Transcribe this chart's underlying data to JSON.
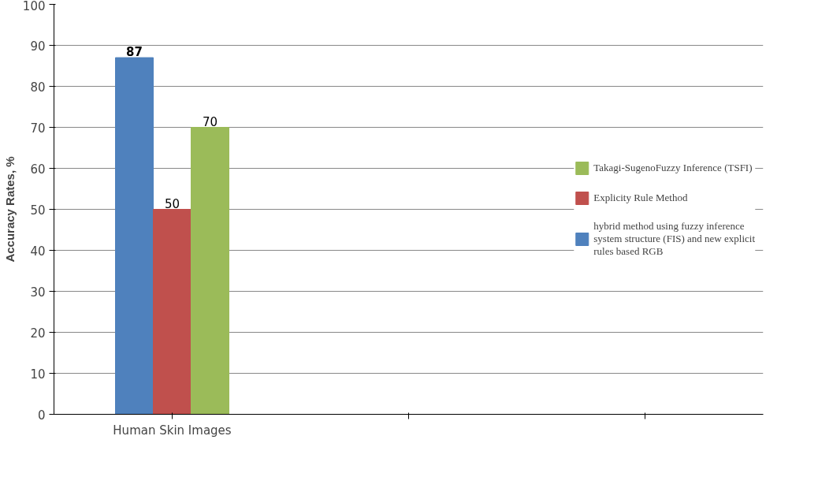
{
  "chart_data": {
    "type": "bar",
    "ylabel": "Accuracy Rates, %",
    "categories": [
      "Human Skin Images",
      null,
      null
    ],
    "series": [
      {
        "name": "hybrid method using fuzzy inference system structure (FIS) and new explicit rules based RGB",
        "color": "#4f81bd",
        "values": [
          87,
          null,
          null
        ]
      },
      {
        "name": "Explicity Rule Method",
        "color": "#c0504d",
        "values": [
          50,
          null,
          null
        ]
      },
      {
        "name": "Takagi-SugenoFuzzy Inference (TSFI)",
        "color": "#9bbb59",
        "values": [
          70,
          null,
          null
        ]
      }
    ],
    "ylim": [
      0,
      100
    ],
    "yticks": [
      0,
      10,
      20,
      30,
      40,
      50,
      60,
      70,
      80,
      90,
      100
    ],
    "grid": "y",
    "legend": "right",
    "data_labels": true
  }
}
